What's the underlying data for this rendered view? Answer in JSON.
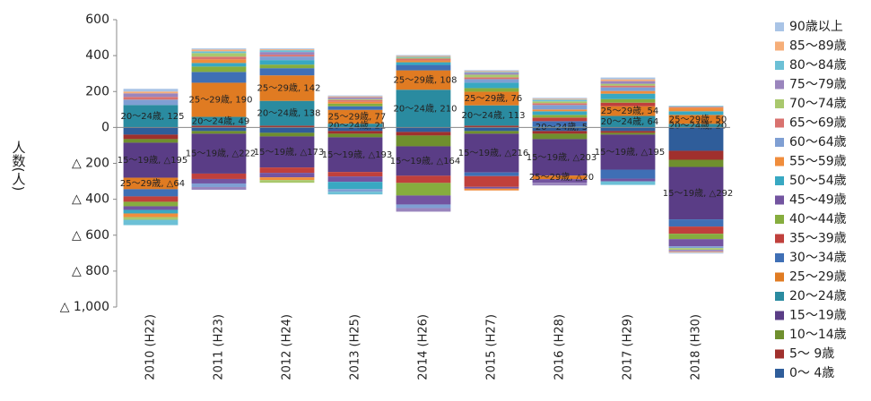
{
  "chart_data": {
    "type": "stacked-bar",
    "y_label": "人数(人)",
    "categories": [
      "2010 (H22)",
      "2011 (H23)",
      "2012 (H24)",
      "2013 (H25)",
      "2014 (H26)",
      "2015 (H27)",
      "2016 (H28)",
      "2017 (H29)",
      "2018 (H30)"
    ],
    "ylim": [
      -1000,
      600
    ],
    "yticks": [
      600,
      400,
      200,
      0,
      {
        "value": -200,
        "label": "△ 200"
      },
      {
        "value": -400,
        "label": "△ 400"
      },
      {
        "value": -600,
        "label": "△ 600"
      },
      {
        "value": -800,
        "label": "△ 800"
      },
      {
        "value": -1000,
        "label": "△ 1,000"
      }
    ],
    "grid": false,
    "series": [
      {
        "name": "0～ 4歳",
        "color": "#2f5d9a",
        "values": [
          -40,
          -20,
          -30,
          -20,
          -25,
          -20,
          -20,
          -20,
          -130
        ]
      },
      {
        "name": "5～ 9歳",
        "color": "#a0302d",
        "values": [
          -25,
          10,
          10,
          -15,
          -20,
          10,
          -15,
          -10,
          -50
        ]
      },
      {
        "name": "10～14歳",
        "color": "#6f8f2e",
        "values": [
          -20,
          -15,
          -20,
          -20,
          -60,
          -15,
          -30,
          -10,
          -40
        ]
      },
      {
        "name": "15～19歳",
        "color": "#5a3d86",
        "values": [
          -195,
          -222,
          -173,
          -193,
          -164,
          -216,
          -203,
          -195,
          -292
        ],
        "value_labels": [
          "15～19歳, △195",
          "15～19歳, △222",
          "15～19歳, △173",
          "15～19歳, △193",
          "15～19歳, △164",
          "15～19歳, △216",
          "15～19歳, △203",
          "15～19歳, △195",
          "15～19歳, △292"
        ]
      },
      {
        "name": "20～24歳",
        "color": "#2a8ba0",
        "values": [
          125,
          49,
          138,
          21,
          210,
          113,
          5,
          64,
          20
        ],
        "value_labels": [
          "20～24歳, 125",
          "20～24歳, 49",
          "20～24歳, 138",
          "20～24歳, 21",
          "20～24歳, 210",
          "20～24歳, 113",
          "20～24歳, 5",
          "20～24歳, 64",
          "20～24歳, 20"
        ]
      },
      {
        "name": "25～29歳",
        "color": "#e07b22",
        "values": [
          -64,
          190,
          142,
          77,
          108,
          76,
          -20,
          54,
          50
        ],
        "value_labels": [
          "25～29歳, △64",
          "25～29歳, 190",
          "25～29歳, 142",
          "25～29歳, 77",
          "25～29歳, 108",
          "25～29歳, 76",
          "25～29歳, △20",
          "25～29歳, 54",
          "25～29歳, 50"
        ]
      },
      {
        "name": "30～34歳",
        "color": "#3f6fb5",
        "values": [
          -40,
          60,
          40,
          20,
          30,
          -20,
          30,
          -50,
          -40
        ]
      },
      {
        "name": "35～39歳",
        "color": "#c0403c",
        "values": [
          -30,
          -30,
          -30,
          -25,
          -40,
          -60,
          20,
          20,
          -40
        ]
      },
      {
        "name": "40～44歳",
        "color": "#86ad3e",
        "values": [
          -25,
          30,
          20,
          15,
          -70,
          20,
          15,
          20,
          -30
        ]
      },
      {
        "name": "45～49歳",
        "color": "#7354a0",
        "values": [
          -20,
          -25,
          -25,
          -30,
          -50,
          -10,
          -20,
          -15,
          -40
        ]
      },
      {
        "name": "50～54歳",
        "color": "#38a8c2",
        "values": [
          -20,
          20,
          25,
          -40,
          15,
          30,
          20,
          30,
          20
        ]
      },
      {
        "name": "55～59歳",
        "color": "#f08d3c",
        "values": [
          -20,
          20,
          -15,
          10,
          10,
          -10,
          10,
          15,
          20
        ]
      },
      {
        "name": "60～64歳",
        "color": "#7f9fd3",
        "values": [
          30,
          -20,
          20,
          -15,
          -20,
          20,
          25,
          20,
          -10
        ]
      },
      {
        "name": "65～69歳",
        "color": "#d9726f",
        "values": [
          15,
          15,
          10,
          10,
          10,
          10,
          10,
          10,
          5
        ]
      },
      {
        "name": "70～74歳",
        "color": "#a9c86d",
        "values": [
          -15,
          20,
          -15,
          5,
          5,
          15,
          10,
          10,
          -10
        ]
      },
      {
        "name": "75～79歳",
        "color": "#9a85bd",
        "values": [
          20,
          -15,
          15,
          10,
          -20,
          10,
          -15,
          15,
          -10
        ]
      },
      {
        "name": "80～84歳",
        "color": "#6cc0d6",
        "values": [
          -30,
          10,
          10,
          -15,
          5,
          5,
          10,
          -20,
          5
        ]
      },
      {
        "name": "85～89歳",
        "color": "#f6ae78",
        "values": [
          10,
          10,
          5,
          5,
          5,
          5,
          5,
          10,
          -5
        ]
      },
      {
        "name": "90歳以上",
        "color": "#a9c4e6",
        "values": [
          15,
          6,
          5,
          5,
          5,
          5,
          5,
          10,
          -5
        ]
      }
    ]
  }
}
